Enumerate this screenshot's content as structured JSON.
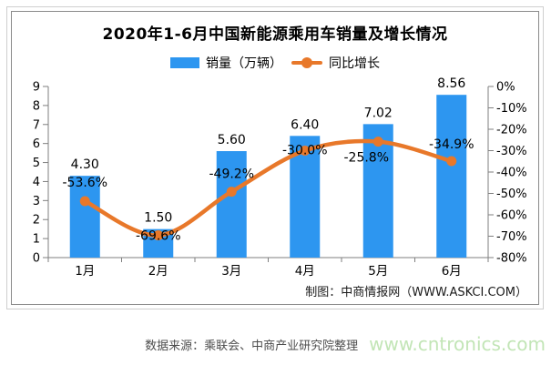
{
  "chart_data": {
    "type": "bar+line",
    "title": "2020年1-6月中国新能源乘用车销量及增长情况",
    "categories": [
      "1月",
      "2月",
      "3月",
      "4月",
      "5月",
      "6月"
    ],
    "series": [
      {
        "name": "销量（万辆）",
        "type": "bar",
        "axis": "left",
        "color": "#2D96F0",
        "values": [
          4.3,
          1.5,
          5.6,
          6.4,
          7.02,
          8.56
        ],
        "labels": [
          "4.30",
          "1.50",
          "5.60",
          "6.40",
          "7.02",
          "8.56"
        ]
      },
      {
        "name": "同比增长",
        "type": "line",
        "axis": "right",
        "color": "#E8782A",
        "values": [
          -53.6,
          -69.6,
          -49.2,
          -30.0,
          -25.8,
          -34.9
        ],
        "labels": [
          "-53.6%",
          "-69.6%",
          "-49.2%",
          "-30.0%",
          "-25.8%",
          "-34.9%"
        ]
      }
    ],
    "left_axis": {
      "min": 0,
      "max": 9,
      "step": 1,
      "ticks": [
        "0",
        "1",
        "2",
        "3",
        "4",
        "5",
        "6",
        "7",
        "8",
        "9"
      ]
    },
    "right_axis": {
      "min": -80,
      "max": 0,
      "step": 10,
      "ticks": [
        "0%",
        "-10%",
        "-20%",
        "-30%",
        "-40%",
        "-50%",
        "-60%",
        "-70%",
        "-80%"
      ]
    },
    "grid": false,
    "legend_position": "top"
  },
  "attribution": "制图：中商情报网（WWW.ASKCI.COM）",
  "footer": {
    "source": "数据来源：乘联会、中商产业研究院整理",
    "watermark": "www.cntronics.com",
    "watermark_color": "#C2E5B6"
  }
}
